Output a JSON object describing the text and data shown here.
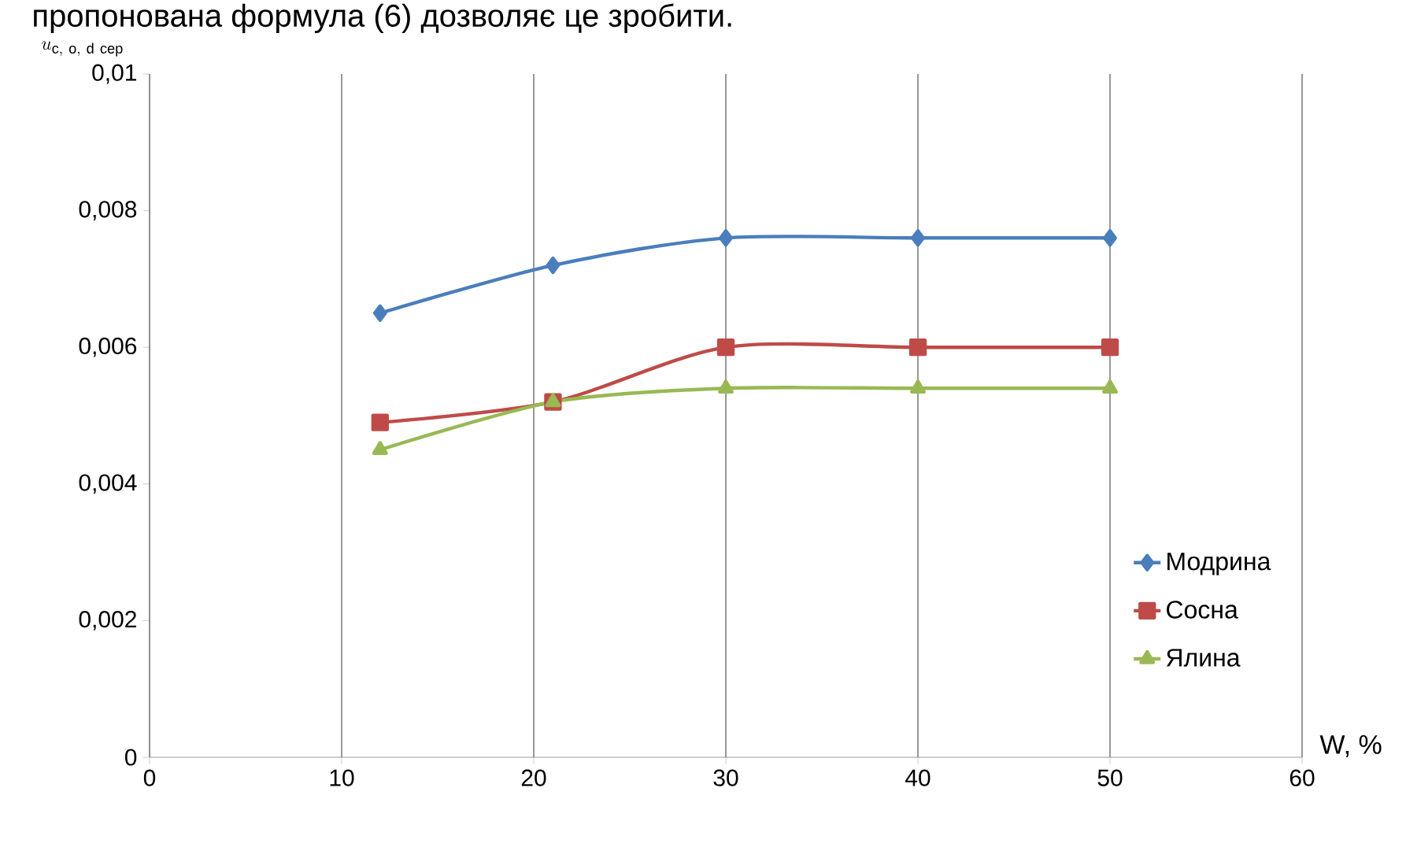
{
  "chart_data": {
    "type": "line",
    "annotations": [
      "пропонована формула (6) дозволяє це зробити."
    ],
    "xlabel": "W, %",
    "ylabel": "u_{\\mathrm{c,\\ o,\\ d\\ сер}}",
    "x": [
      12,
      21,
      30,
      40,
      50
    ],
    "series": [
      {
        "name": "Модрина",
        "color": "#4a7ebb",
        "marker": "diamond",
        "values": [
          0.0065,
          0.0072,
          0.0076,
          0.0076,
          0.0076
        ]
      },
      {
        "name": "Сосна",
        "color": "#be4b48",
        "marker": "square",
        "values": [
          0.0049,
          0.0052,
          0.006,
          0.006,
          0.006
        ]
      },
      {
        "name": "Ялина",
        "color": "#98b954",
        "marker": "triangle",
        "values": [
          0.0045,
          0.0052,
          0.0054,
          0.0054,
          0.0054
        ]
      }
    ],
    "xlim": [
      0,
      60
    ],
    "xticks": [
      0,
      10,
      20,
      30,
      40,
      50,
      60
    ],
    "ylim": [
      0,
      0.01
    ],
    "yticks": [
      0,
      {
        "value": 0.002,
        "label": "0,002"
      },
      {
        "value": 0.004,
        "label": "0,004"
      },
      {
        "value": 0.006,
        "label": "0,006"
      },
      {
        "value": 0.008,
        "label": "0,008"
      },
      {
        "value": 0.01,
        "label": "0,01"
      }
    ],
    "grid": "x",
    "legend": "bottom right",
    "line_style": "solid"
  }
}
